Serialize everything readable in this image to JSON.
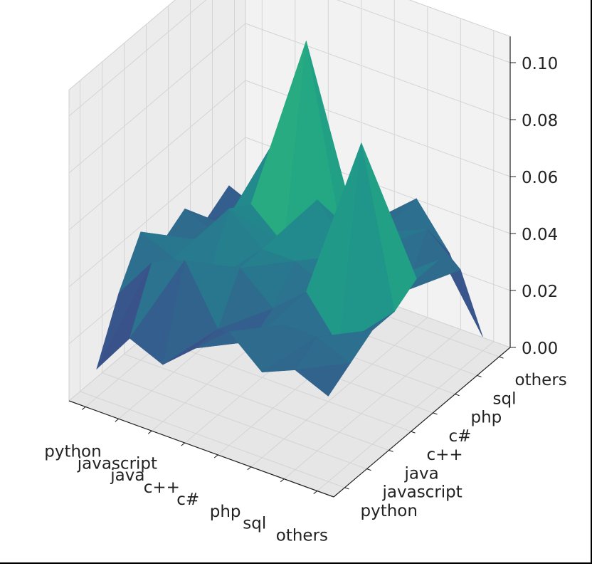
{
  "chart_data": {
    "type": "surface",
    "colormap": "viridis",
    "x_categories": [
      "python",
      "javascript",
      "java",
      "c++",
      "c#",
      "php",
      "sql",
      "others"
    ],
    "y_categories": [
      "python",
      "javascript",
      "java",
      "c++",
      "c#",
      "php",
      "sql",
      "others"
    ],
    "z_ticks": [
      "0.00",
      "0.02",
      "0.04",
      "0.06",
      "0.08",
      "0.10"
    ],
    "zlim": [
      0,
      0.105
    ],
    "grid": true,
    "z": [
      [
        0.01,
        0.03,
        0.045,
        0.035,
        0.04,
        0.03,
        0.035,
        0.02
      ],
      [
        0.025,
        0.045,
        0.04,
        0.04,
        0.035,
        0.03,
        0.03,
        0.0
      ],
      [
        0.02,
        0.05,
        0.035,
        0.055,
        0.05,
        0.065,
        0.035,
        0.03
      ],
      [
        0.03,
        0.03,
        0.045,
        0.045,
        0.04,
        0.105,
        0.045,
        0.04
      ],
      [
        0.04,
        0.03,
        0.035,
        0.045,
        0.06,
        0.045,
        0.03,
        0.035
      ],
      [
        0.03,
        0.04,
        0.045,
        0.04,
        0.045,
        0.04,
        0.04,
        0.045
      ],
      [
        0.035,
        0.04,
        0.03,
        0.095,
        0.04,
        0.03,
        0.045,
        0.03
      ],
      [
        0.03,
        0.035,
        0.04,
        0.04,
        0.045,
        0.045,
        0.035,
        0.005
      ]
    ]
  }
}
